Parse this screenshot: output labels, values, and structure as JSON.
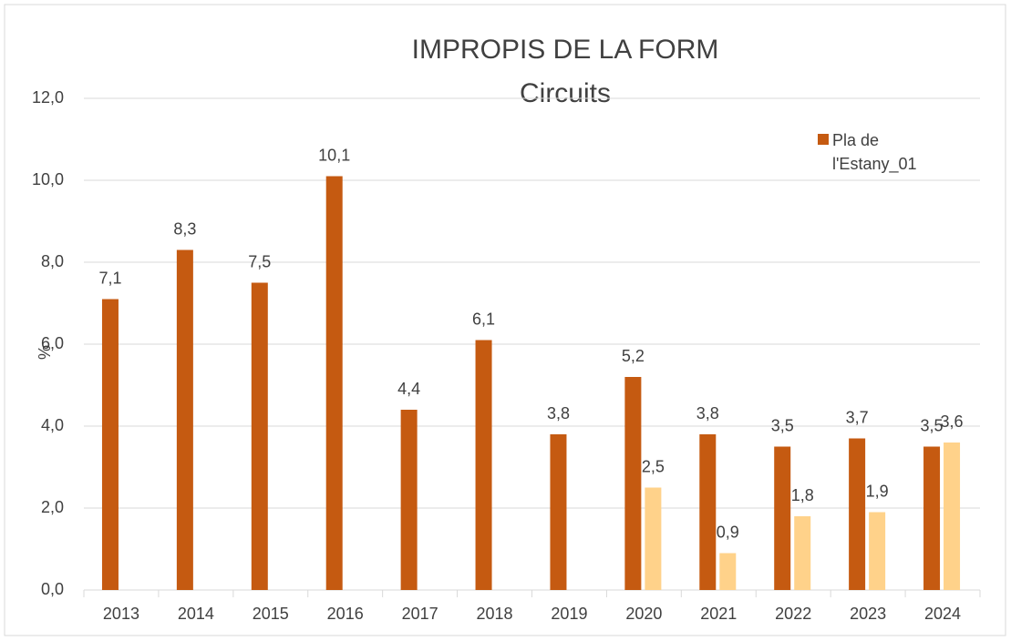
{
  "chart_data": {
    "type": "bar",
    "title": "IMPROPIS DE LA FORM",
    "subtitle": "Circuits",
    "y_label": "%",
    "categories": [
      "2013",
      "2014",
      "2015",
      "2016",
      "2017",
      "2018",
      "2019",
      "2020",
      "2021",
      "2022",
      "2023",
      "2024"
    ],
    "series": [
      {
        "name": "Pla de l'Estany_01",
        "color": "#c55a11",
        "values": [
          7.1,
          8.3,
          7.5,
          10.1,
          4.4,
          6.1,
          3.8,
          5.2,
          3.8,
          3.5,
          3.7,
          3.5
        ],
        "value_labels": [
          "7,1",
          "8,3",
          "7,5",
          "10,1",
          "4,4",
          "6,1",
          "3,8",
          "5,2",
          "3,8",
          "3,5",
          "3,7",
          "3,5"
        ]
      },
      {
        "color": "#ffd28a",
        "values": [
          null,
          null,
          null,
          null,
          null,
          null,
          null,
          2.5,
          0.9,
          1.8,
          1.9,
          3.6
        ],
        "value_labels": [
          null,
          null,
          null,
          null,
          null,
          null,
          null,
          "2,5",
          "0,9",
          "1,8",
          "1,9",
          "3,6"
        ]
      }
    ],
    "ylim": [
      0,
      12
    ],
    "yticks": [
      {
        "value": 0,
        "label": "0,0"
      },
      {
        "value": 2,
        "label": "2,0"
      },
      {
        "value": 4,
        "label": "4,0"
      },
      {
        "value": 6,
        "label": "6,0"
      },
      {
        "value": 8,
        "label": "8,0"
      },
      {
        "value": 10,
        "label": "10,0"
      },
      {
        "value": 12,
        "label": "12,0"
      }
    ],
    "grid": true,
    "legend": "upper right"
  }
}
